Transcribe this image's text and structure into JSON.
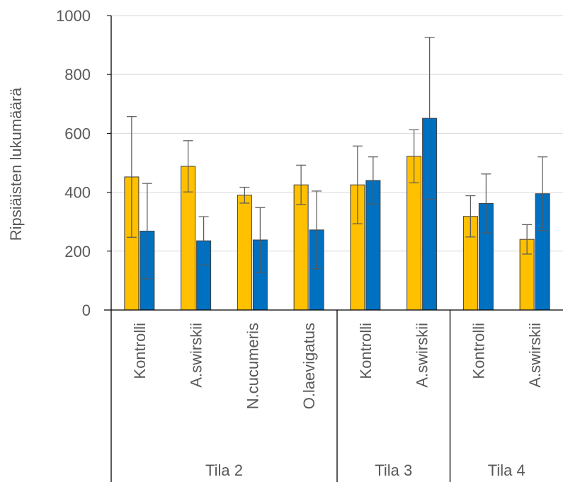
{
  "chart_data": {
    "type": "bar",
    "title": "",
    "ylabel": "Ripsiäisten lukumäärä",
    "xlabel": "",
    "ylim": [
      0,
      1000
    ],
    "yticks": [
      0,
      200,
      400,
      600,
      800,
      1000
    ],
    "grid": true,
    "colors": [
      "#FFC000",
      "#0070C0"
    ],
    "groups": [
      {
        "label": "Tila 2",
        "categories": [
          "Kontrolli",
          "A.swirskii",
          "N.cucumeris",
          "O.laevigatus"
        ]
      },
      {
        "label": "Tila 3",
        "categories": [
          "Kontrolli",
          "A.swirskii"
        ]
      },
      {
        "label": "Tila 4",
        "categories": [
          "Kontrolli",
          "A.swirskii"
        ]
      }
    ],
    "series": [
      {
        "values": [
          452,
          488,
          390,
          425,
          425,
          522,
          318,
          240
        ],
        "error": [
          205,
          87,
          27,
          67,
          132,
          90,
          70,
          50
        ]
      },
      {
        "values": [
          268,
          235,
          238,
          272,
          440,
          651,
          362,
          395
        ],
        "error": [
          162,
          82,
          110,
          132,
          80,
          275,
          100,
          125
        ]
      }
    ]
  }
}
